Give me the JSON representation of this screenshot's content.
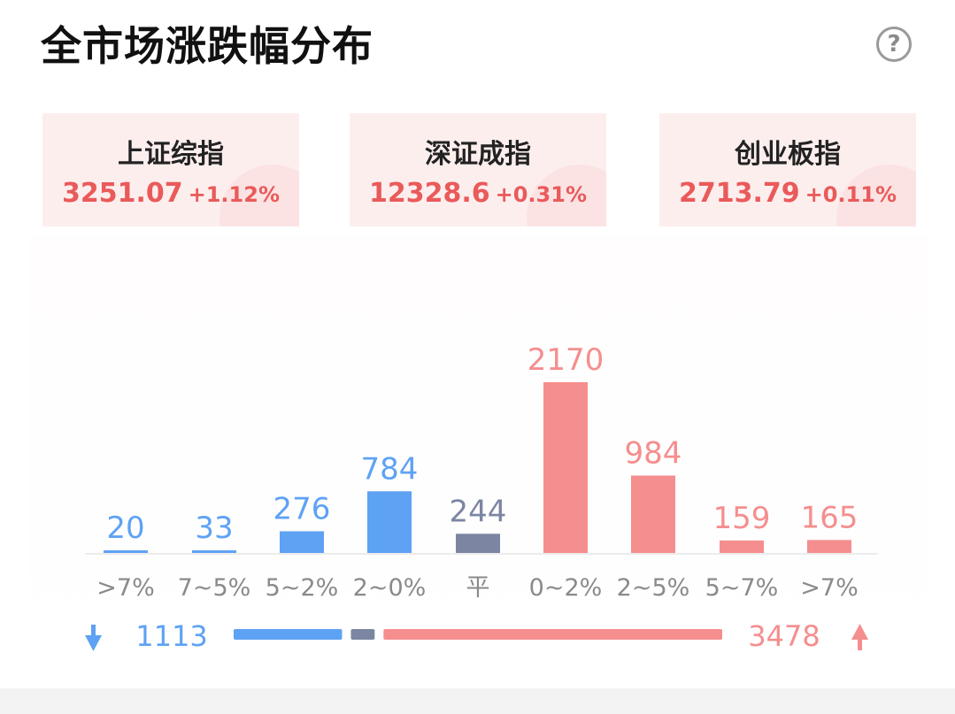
{
  "title": "全市场涨跌幅分布",
  "help_icon": "question-circle-icon",
  "indices": [
    {
      "name": "上证综指",
      "value": "3251.07",
      "change": "+1.12%"
    },
    {
      "name": "深证成指",
      "value": "12328.6",
      "change": "+0.31%"
    },
    {
      "name": "创业板指",
      "value": "2713.79",
      "change": "+0.11%"
    }
  ],
  "colors": {
    "down": "#5ea2f4",
    "flat": "#7c86a2",
    "up": "#f58e8e",
    "axis_label": "#8a8a8a",
    "up_text": "#ea5a5a"
  },
  "chart_data": {
    "type": "bar",
    "categories": [
      ">7%",
      "7~5%",
      "5~2%",
      "2~0%",
      "平",
      "0~2%",
      "2~5%",
      "5~7%",
      ">7%"
    ],
    "values": [
      20,
      33,
      276,
      784,
      244,
      2170,
      984,
      159,
      165
    ],
    "groups": [
      "down",
      "down",
      "down",
      "down",
      "flat",
      "up",
      "up",
      "up",
      "up"
    ],
    "summary": {
      "down_total": "1113",
      "up_total": "3478",
      "flat_total": 244,
      "down_icon": "arrow-down-icon",
      "up_icon": "arrow-up-icon"
    }
  }
}
